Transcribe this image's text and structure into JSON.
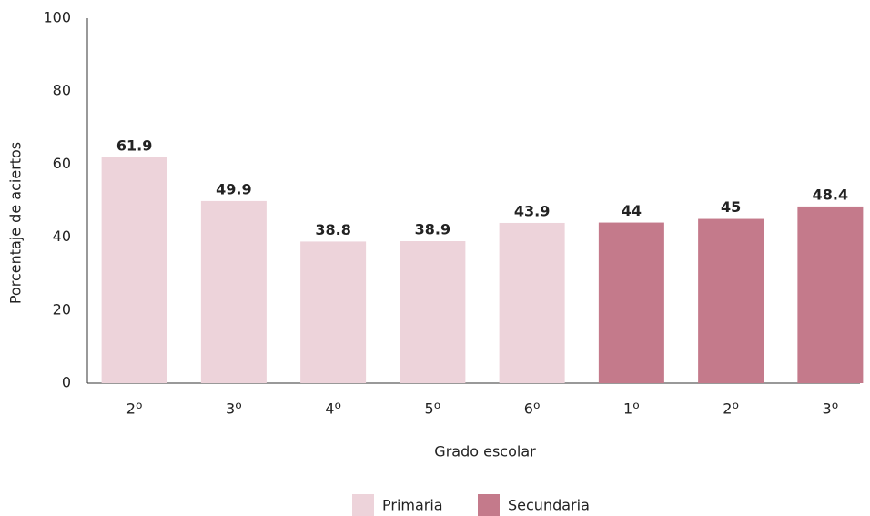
{
  "chart_data": {
    "type": "bar",
    "categories": [
      "2º",
      "3º",
      "4º",
      "5º",
      "6º",
      "1º",
      "2º",
      "3º"
    ],
    "series": [
      {
        "name": "Primaria",
        "color": "#edd3da",
        "values": [
          61.9,
          49.9,
          38.8,
          38.9,
          43.9,
          null,
          null,
          null
        ]
      },
      {
        "name": "Secundaria",
        "color": "#c47a8b",
        "values": [
          null,
          null,
          null,
          null,
          null,
          44,
          45,
          48.4
        ]
      }
    ],
    "ylabel": "Porcentaje de aciertos",
    "xlabel": "Grado escolar",
    "ylim": [
      0,
      100
    ],
    "yticks": [
      0,
      20,
      40,
      60,
      80,
      100
    ],
    "grid": false,
    "legend": "bottom"
  }
}
